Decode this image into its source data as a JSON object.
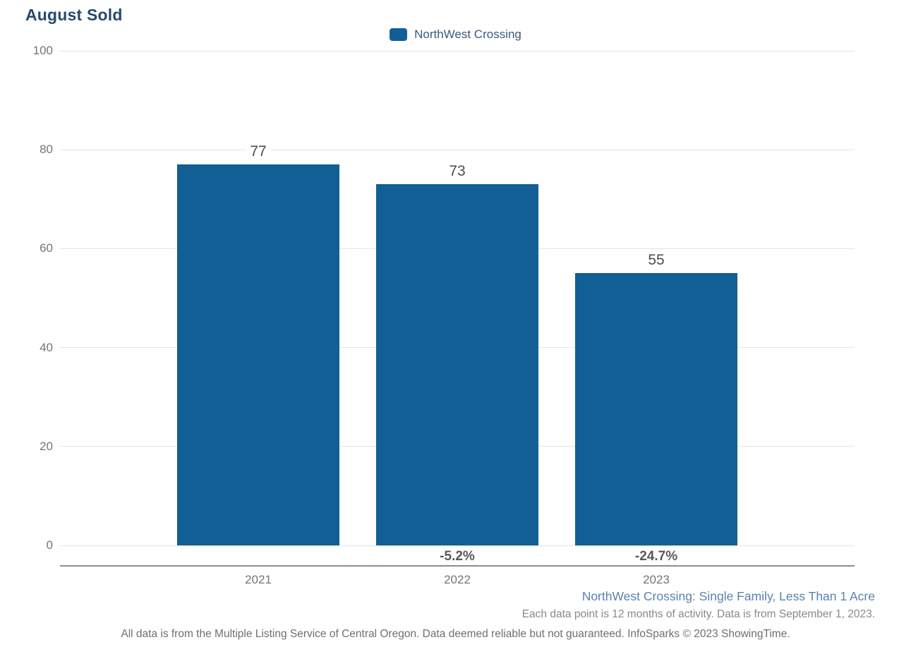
{
  "title": "August Sold",
  "legend": {
    "label": "NorthWest Crossing",
    "swatch_color": "#115f94"
  },
  "chart_data": {
    "type": "bar",
    "title": "August Sold",
    "categories": [
      "2021",
      "2022",
      "2023"
    ],
    "series": [
      {
        "name": "NorthWest Crossing",
        "values": [
          77,
          73,
          55
        ],
        "color": "#115f94"
      }
    ],
    "bar_value_labels": [
      "77",
      "73",
      "55"
    ],
    "pct_change_labels": [
      null,
      "-5.2%",
      "-24.7%"
    ],
    "xlabel": "",
    "ylabel": "",
    "ylim": [
      0,
      100
    ],
    "yticks": [
      0,
      20,
      40,
      60,
      80,
      100
    ],
    "grid": "horizontal",
    "legend_entries": [
      "NorthWest Crossing"
    ],
    "legend_position": "top-center"
  },
  "footer": {
    "series_description": "NorthWest Crossing: Single Family, Less Than 1 Acre",
    "data_note": "Each data point is 12 months of activity. Data is from September 1, 2023.",
    "disclaimer": "All data is from the Multiple Listing Service of Central Oregon. Data deemed reliable but not guaranteed. InfoSparks © 2023 ShowingTime."
  },
  "colors": {
    "bar": "#115f94",
    "title_text": "#27496d",
    "axis_line": "#8c8c8c",
    "gridline": "#e4e4e4",
    "tick_text": "#757575"
  }
}
